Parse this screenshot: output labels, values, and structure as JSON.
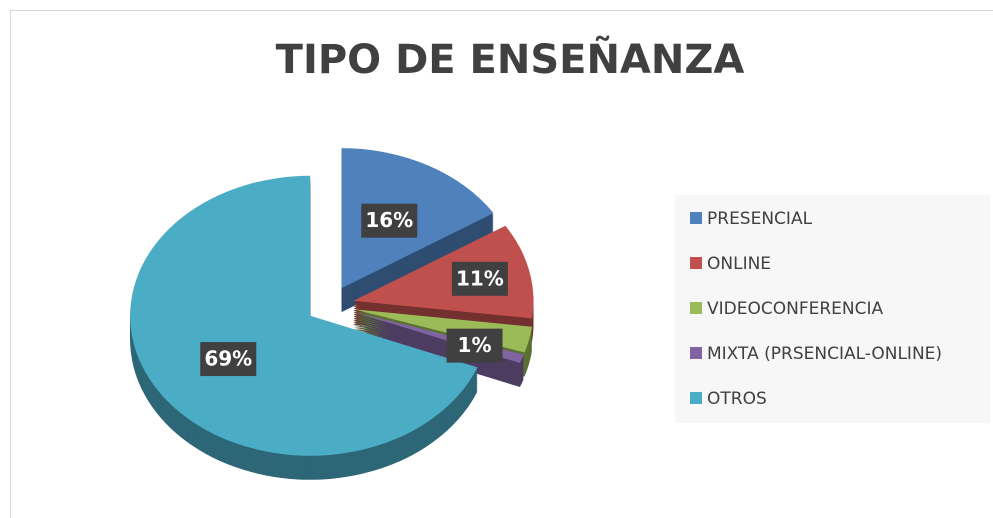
{
  "chart_data": {
    "type": "pie",
    "title": "TIPO DE ENSEÑANZA",
    "categories": [
      "PRESENCIAL",
      "ONLINE",
      "VIDEOCONFERENCIA",
      "MIXTA (PRSENCIAL-ONLINE)",
      "OTROS"
    ],
    "values": [
      16,
      11,
      3,
      1,
      69
    ],
    "value_labels": [
      "16%",
      "11%",
      null,
      "1%",
      "69%"
    ],
    "colors": [
      "#4f81bd",
      "#c0504d",
      "#9bbb59",
      "#8064a2",
      "#4bacc6"
    ],
    "legend": "right"
  }
}
